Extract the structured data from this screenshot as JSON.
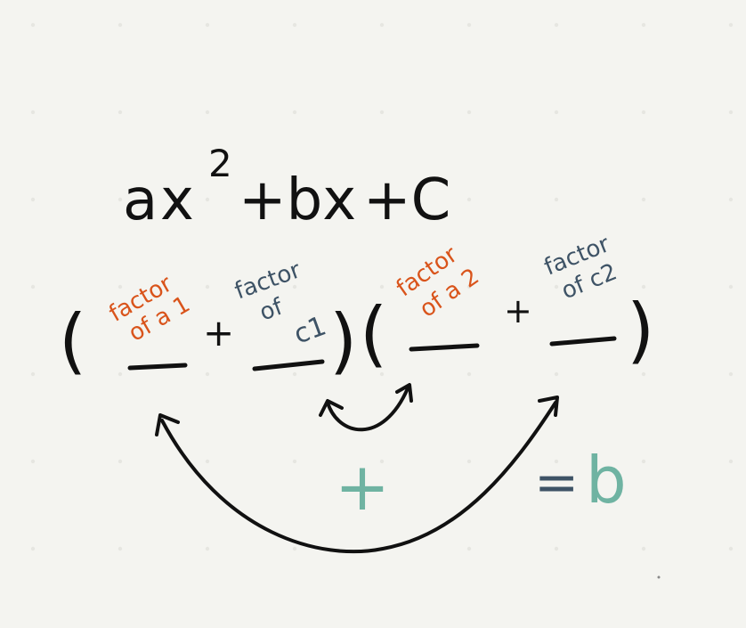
{
  "colors": {
    "background": "#f4f4f0",
    "grid_dot": "#e6e6e1",
    "ink": "#111111",
    "orange": "#d9541b",
    "slate": "#3e5366",
    "teal": "#6fb3a2"
  },
  "equation": {
    "a": "a",
    "x": "x",
    "exponent": "2",
    "plus_bx": "+bx",
    "plus_c": "+C"
  },
  "factorization": {
    "open_paren_1": "(",
    "close_paren_1": ")",
    "open_paren_2": "(",
    "close_paren_2": ")",
    "plus_1": "+",
    "plus_2": "+",
    "slot_a1": {
      "line1": "factor",
      "line2": "of a 1"
    },
    "slot_c1": {
      "line1": "factor",
      "line2": "of",
      "line3": "c1"
    },
    "slot_a2": {
      "line1": "factor",
      "line2": "of a 2"
    },
    "slot_c2": {
      "line1": "factor",
      "line2": "of c2"
    }
  },
  "result": {
    "plus_sign": "+",
    "equals": "=",
    "b": "b"
  },
  "connectors": {
    "inner_arrow_icon": "double-arrow-curve-inner",
    "outer_arrow_icon": "double-arrow-curve-outer"
  }
}
